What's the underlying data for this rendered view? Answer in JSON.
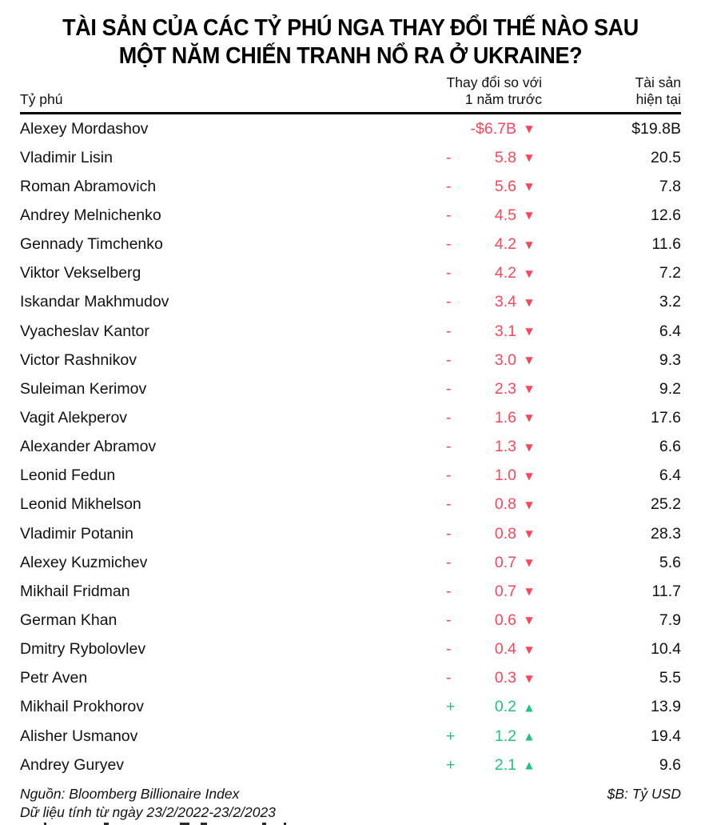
{
  "title": {
    "full": "TÀI SẢN CỦA CÁC TỶ PHÚ NGA THAY ĐỔI THẾ NÀO SAU MỘT NĂM CHIẾN TRANH NỔ RA Ở UKRAINE?",
    "lines": [
      "TÀI SẢN CỦA CÁC TỶ PHÚ NGA THAY ĐỔI THẾ NÀO SAU",
      "MỘT NĂM CHIẾN TRANH NỔ RA Ở UKRAINE?"
    ]
  },
  "table": {
    "headers": {
      "billionaire": "Tỷ phú",
      "change_line1": "Thay đổi so với",
      "change_line2": "1 năm trước",
      "assets_line1": "Tài sản",
      "assets_line2": "hiện tại"
    },
    "rows": [
      {
        "name": "Alexey Mordashov",
        "sign": "-",
        "value": "$6.7B",
        "direction": "down",
        "asset": "$19.8B"
      },
      {
        "name": "Vladimir Lisin",
        "sign": "-",
        "value": "5.8",
        "direction": "down",
        "asset": "20.5"
      },
      {
        "name": "Roman Abramovich",
        "sign": "-",
        "value": "5.6",
        "direction": "down",
        "asset": "7.8"
      },
      {
        "name": "Andrey Melnichenko",
        "sign": "-",
        "value": "4.5",
        "direction": "down",
        "asset": "12.6"
      },
      {
        "name": "Gennady Timchenko",
        "sign": "-",
        "value": "4.2",
        "direction": "down",
        "asset": "11.6"
      },
      {
        "name": "Viktor Vekselberg",
        "sign": "-",
        "value": "4.2",
        "direction": "down",
        "asset": "7.2"
      },
      {
        "name": "Iskandar Makhmudov",
        "sign": "-",
        "value": "3.4",
        "direction": "down",
        "asset": "3.2"
      },
      {
        "name": "Vyacheslav Kantor",
        "sign": "-",
        "value": "3.1",
        "direction": "down",
        "asset": "6.4"
      },
      {
        "name": "Victor Rashnikov",
        "sign": "-",
        "value": "3.0",
        "direction": "down",
        "asset": "9.3"
      },
      {
        "name": "Suleiman Kerimov",
        "sign": "-",
        "value": "2.3",
        "direction": "down",
        "asset": "9.2"
      },
      {
        "name": "Vagit Alekperov",
        "sign": "-",
        "value": "1.6",
        "direction": "down",
        "asset": "17.6"
      },
      {
        "name": "Alexander Abramov",
        "sign": "-",
        "value": "1.3",
        "direction": "down",
        "asset": "6.6"
      },
      {
        "name": "Leonid Fedun",
        "sign": "-",
        "value": "1.0",
        "direction": "down",
        "asset": "6.4"
      },
      {
        "name": "Leonid Mikhelson",
        "sign": "-",
        "value": "0.8",
        "direction": "down",
        "asset": "25.2"
      },
      {
        "name": "Vladimir Potanin",
        "sign": "-",
        "value": "0.8",
        "direction": "down",
        "asset": "28.3"
      },
      {
        "name": "Alexey Kuzmichev",
        "sign": "-",
        "value": "0.7",
        "direction": "down",
        "asset": "5.6"
      },
      {
        "name": "Mikhail Fridman",
        "sign": "-",
        "value": "0.7",
        "direction": "down",
        "asset": "11.7"
      },
      {
        "name": "German Khan",
        "sign": "-",
        "value": "0.6",
        "direction": "down",
        "asset": "7.9"
      },
      {
        "name": "Dmitry Rybolovlev",
        "sign": "-",
        "value": "0.4",
        "direction": "down",
        "asset": "10.4"
      },
      {
        "name": "Petr Aven",
        "sign": "-",
        "value": "0.3",
        "direction": "down",
        "asset": "5.5"
      },
      {
        "name": "Mikhail Prokhorov",
        "sign": "+",
        "value": "0.2",
        "direction": "up",
        "asset": "13.9"
      },
      {
        "name": "Alisher Usmanov",
        "sign": "+",
        "value": "1.2",
        "direction": "up",
        "asset": "19.4"
      },
      {
        "name": "Andrey Guryev",
        "sign": "+",
        "value": "2.1",
        "direction": "up",
        "asset": "9.6"
      }
    ]
  },
  "footer": {
    "source": "Nguồn: Bloomberg Billionaire Index",
    "note": "Dữ liệu tính từ ngày 23/2/2022-23/2/2023",
    "unit_note": "$B: Tỷ USD"
  },
  "colors": {
    "decrease": "#f9465a",
    "increase": "#22c17e",
    "text": "#111111",
    "rule": "#000000"
  },
  "icons": {
    "down": "triangle-down-icon",
    "up": "triangle-up-icon"
  },
  "chart_data": {
    "type": "table",
    "title": "TÀI SẢN CỦA CÁC TỶ PHÚ NGA THAY ĐỔI THẾ NÀO SAU MỘT NĂM CHIẾN TRANH NỔ RA Ở UKRAINE?",
    "columns": [
      "Tỷ phú",
      "Thay đổi so với 1 năm trước ($B)",
      "Tài sản hiện tại ($B)"
    ],
    "unit": "$B: Tỷ USD",
    "source": "Bloomberg Billionaire Index",
    "period": "23/2/2022-23/2/2023",
    "rows": [
      [
        "Alexey Mordashov",
        -6.7,
        19.8
      ],
      [
        "Vladimir Lisin",
        -5.8,
        20.5
      ],
      [
        "Roman Abramovich",
        -5.6,
        7.8
      ],
      [
        "Andrey Melnichenko",
        -4.5,
        12.6
      ],
      [
        "Gennady Timchenko",
        -4.2,
        11.6
      ],
      [
        "Viktor Vekselberg",
        -4.2,
        7.2
      ],
      [
        "Iskandar Makhmudov",
        -3.4,
        3.2
      ],
      [
        "Vyacheslav Kantor",
        -3.1,
        6.4
      ],
      [
        "Victor Rashnikov",
        -3.0,
        9.3
      ],
      [
        "Suleiman Kerimov",
        -2.3,
        9.2
      ],
      [
        "Vagit Alekperov",
        -1.6,
        17.6
      ],
      [
        "Alexander Abramov",
        -1.3,
        6.6
      ],
      [
        "Leonid Fedun",
        -1.0,
        6.4
      ],
      [
        "Leonid Mikhelson",
        -0.8,
        25.2
      ],
      [
        "Vladimir Potanin",
        -0.8,
        28.3
      ],
      [
        "Alexey Kuzmichev",
        -0.7,
        5.6
      ],
      [
        "Mikhail Fridman",
        -0.7,
        11.7
      ],
      [
        "German Khan",
        -0.6,
        7.9
      ],
      [
        "Dmitry Rybolovlev",
        -0.4,
        10.4
      ],
      [
        "Petr Aven",
        -0.3,
        5.5
      ],
      [
        "Mikhail Prokhorov",
        0.2,
        13.9
      ],
      [
        "Alisher Usmanov",
        1.2,
        19.4
      ],
      [
        "Andrey Guryev",
        2.1,
        9.6
      ]
    ]
  }
}
